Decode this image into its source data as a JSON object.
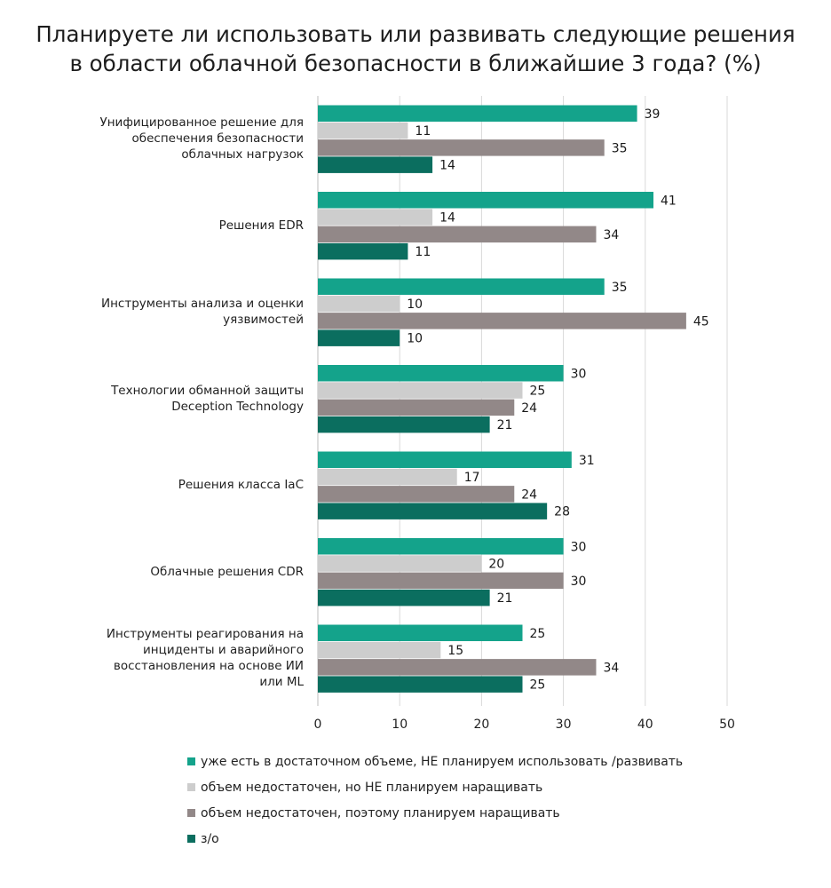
{
  "title_lines": [
    "Планируете ли использовать или развивать следующие решения",
    "в области облачной безопасности в ближайшие 3 года? (%)"
  ],
  "chart_data": {
    "type": "bar",
    "orientation": "horizontal",
    "title": "Планируете ли использовать или развивать следующие решения в области облачной безопасности в ближайшие 3 года? (%)",
    "categories": [
      [
        "Унифицированное решение для",
        "обеспечения безопасности",
        "облачных нагрузок"
      ],
      [
        "Решения EDR"
      ],
      [
        "Инструменты анализа и оценки",
        "уязвимостей"
      ],
      [
        "Технологии обманной защиты",
        "Deception Technology"
      ],
      [
        "Решения класса IaC"
      ],
      [
        "Облачные решения CDR"
      ],
      [
        "Инструменты реагирования на",
        "инциденты и аварийного",
        "восстановления на основе ИИ",
        "или ML"
      ]
    ],
    "series": [
      {
        "name": "уже есть в достаточном объеме, НЕ планируем использовать /развивать",
        "color": "#14a38b",
        "values": [
          39,
          41,
          35,
          30,
          31,
          30,
          25
        ]
      },
      {
        "name": "объем недостаточен, но НЕ планируем наращивать",
        "color": "#cdcdcd",
        "values": [
          11,
          14,
          10,
          25,
          17,
          20,
          15
        ]
      },
      {
        "name": "объем недостаточен, поэтому планируем наращивать",
        "color": "#928888",
        "values": [
          35,
          34,
          45,
          24,
          24,
          30,
          34
        ]
      },
      {
        "name": "з/о",
        "color": "#0b6e5f",
        "values": [
          14,
          11,
          10,
          21,
          28,
          21,
          25
        ]
      }
    ],
    "xlim": [
      0,
      50
    ],
    "xticks": [
      0,
      10,
      20,
      30,
      40,
      50
    ],
    "grid": "vertical",
    "legend_position": "bottom"
  }
}
